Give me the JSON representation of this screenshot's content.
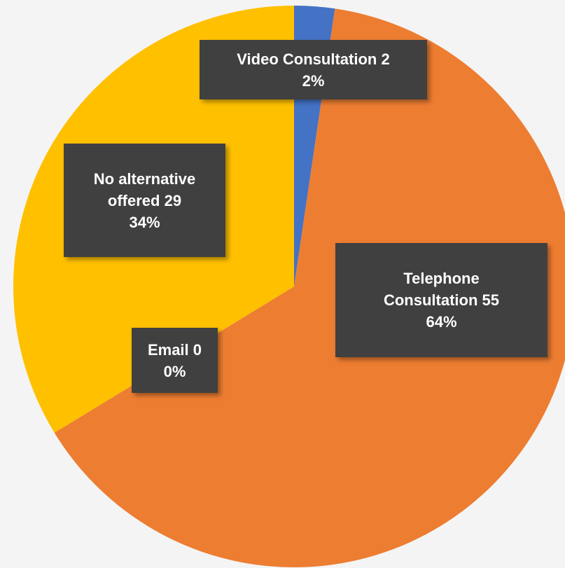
{
  "chart_data": {
    "type": "pie",
    "categories": [
      "Video Consultation",
      "Telephone Consultation",
      "Email",
      "No alternative offered"
    ],
    "values": [
      2,
      55,
      0,
      29
    ],
    "percent_labels": [
      "2%",
      "64%",
      "0%",
      "34%"
    ],
    "colors": [
      "#4472c4",
      "#ed7d31",
      "#a5a5a5",
      "#ffc000"
    ]
  }
}
